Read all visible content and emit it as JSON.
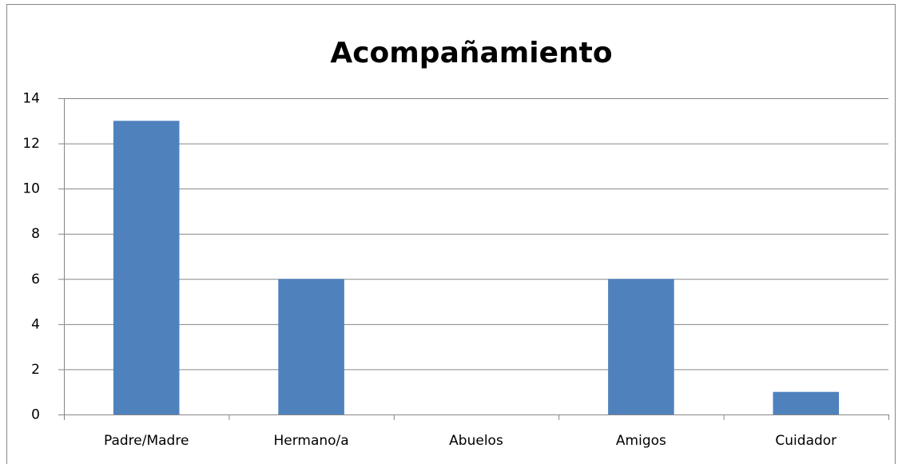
{
  "chart_data": {
    "type": "bar",
    "title": "Acompañamiento",
    "categories": [
      "Padre/Madre",
      "Hermano/a",
      "Abuelos",
      "Amigos",
      "Cuidador"
    ],
    "values": [
      13,
      6,
      0,
      6,
      1
    ],
    "color": "#4f81bd",
    "ylim": [
      0,
      14
    ],
    "yticks": [
      0,
      2,
      4,
      6,
      8,
      10,
      12,
      14
    ],
    "grid": true
  }
}
